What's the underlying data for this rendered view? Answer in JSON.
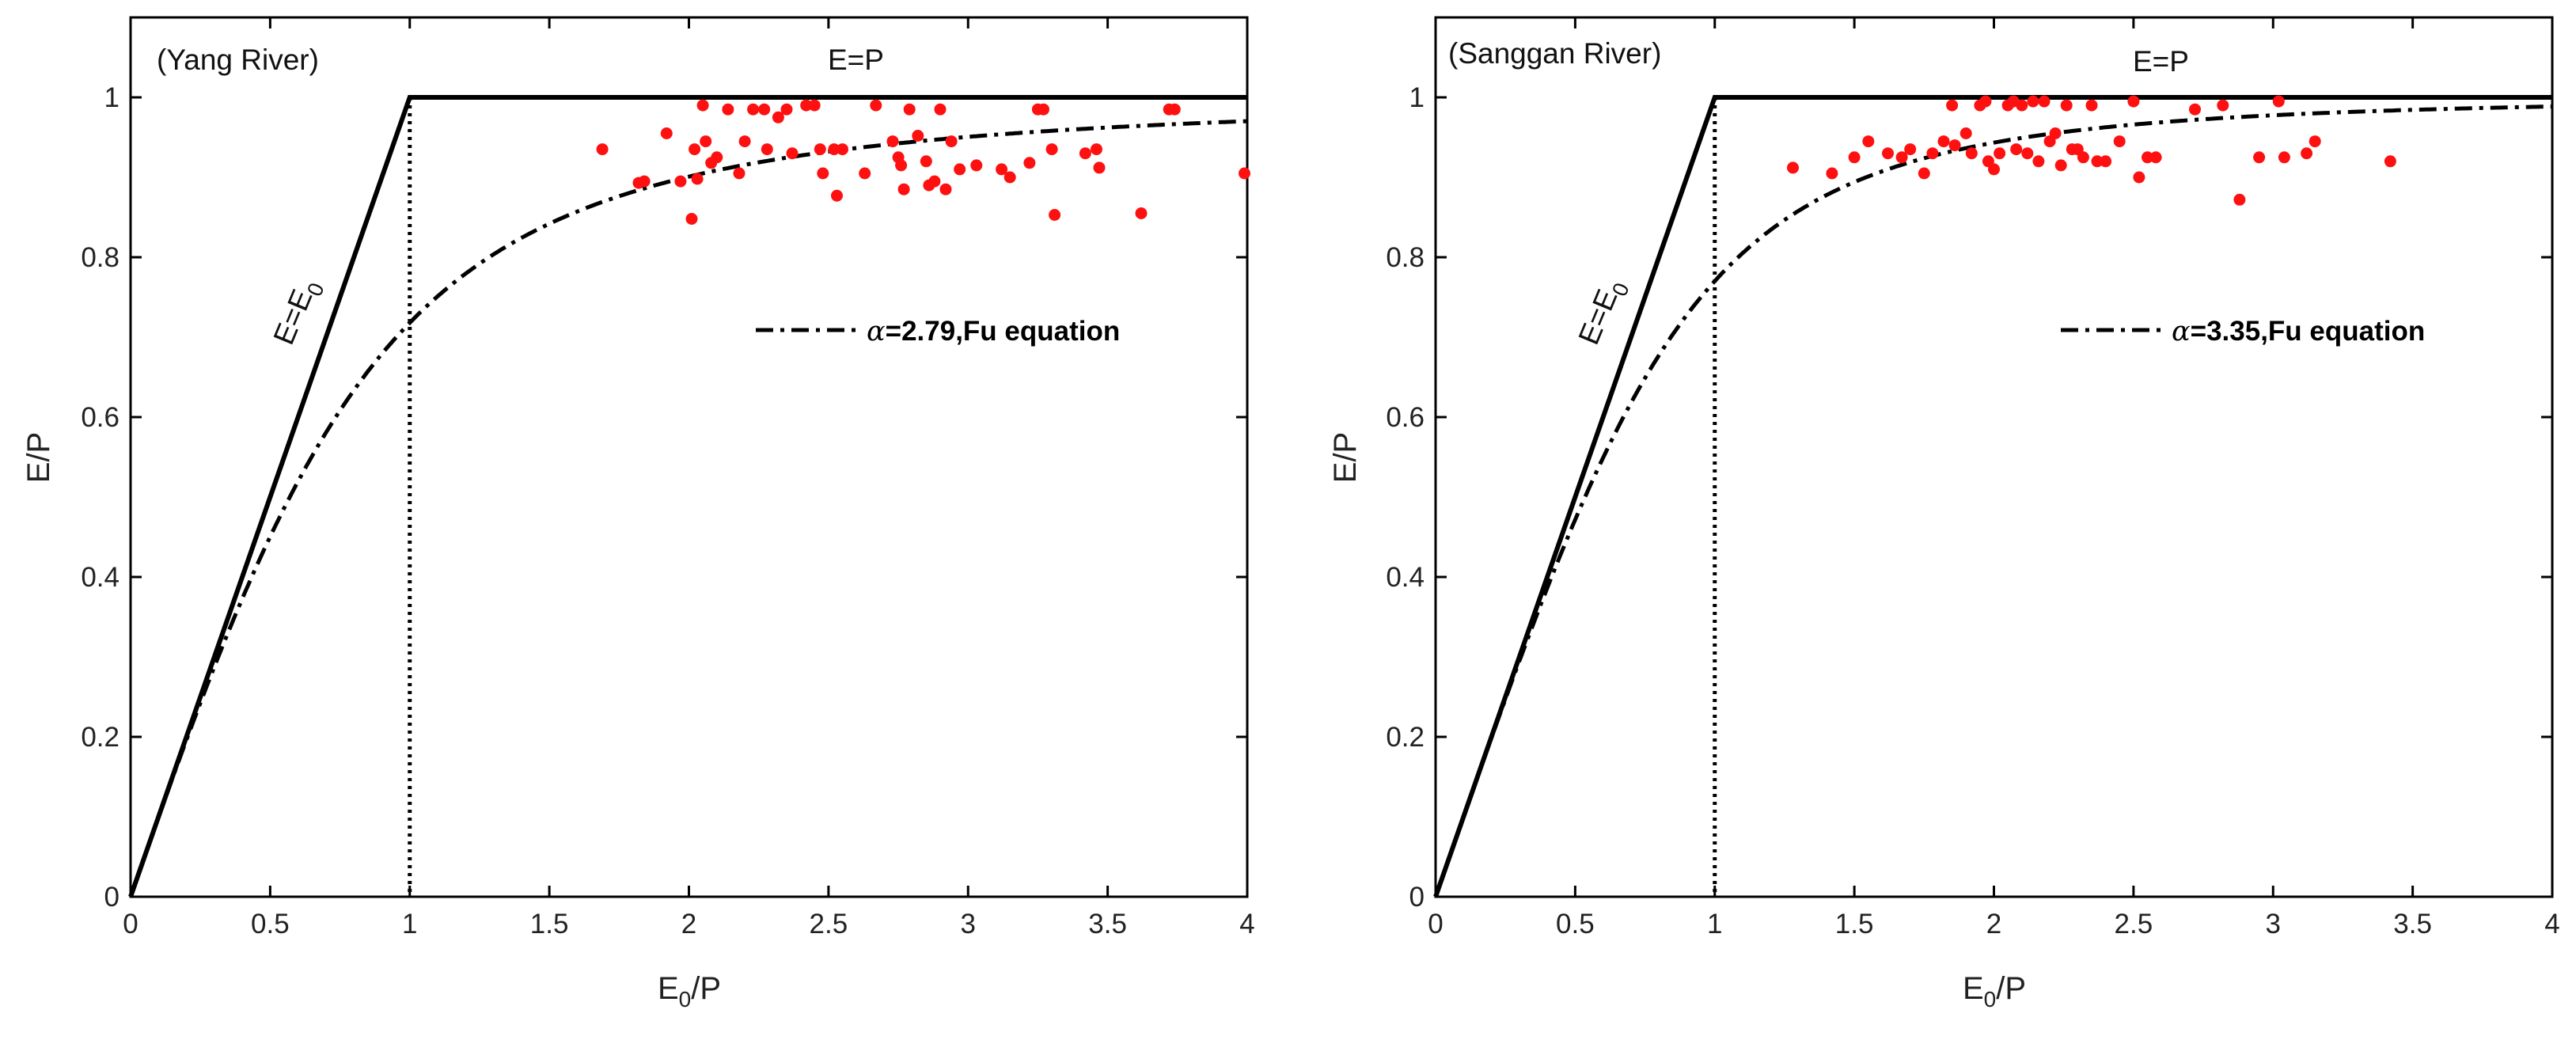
{
  "chart_data": [
    {
      "type": "scatter",
      "panel_label": "(Yang River)",
      "xlabel_main": "E",
      "xlabel_sub": "0",
      "xlabel_tail": "/P",
      "ylabel": "E/P",
      "xlim": [
        0,
        4
      ],
      "ylim": [
        0,
        1.1
      ],
      "xticks": [
        0,
        0.5,
        1,
        1.5,
        2,
        2.5,
        3,
        3.5,
        4
      ],
      "xtick_labels": [
        "0",
        "0.5",
        "1",
        "1.5",
        "2",
        "2.5",
        "3",
        "3.5",
        "4"
      ],
      "yticks": [
        0,
        0.2,
        0.4,
        0.6,
        0.8,
        1
      ],
      "ytick_labels": [
        "0",
        "0.2",
        "0.4",
        "0.6",
        "0.8",
        "1"
      ],
      "energy_limit_label_main": "E=E",
      "energy_limit_label_sub": "0",
      "water_limit_label": "E=P",
      "fu_alpha": 2.79,
      "legend_symbol": "α",
      "legend_text": "=2.79,Fu equation",
      "marker_color": "#ff1010",
      "points": [
        [
          1.69,
          0.935
        ],
        [
          1.82,
          0.893
        ],
        [
          1.84,
          0.895
        ],
        [
          1.92,
          0.955
        ],
        [
          1.97,
          0.895
        ],
        [
          2.01,
          0.848
        ],
        [
          2.02,
          0.935
        ],
        [
          2.03,
          0.898
        ],
        [
          2.05,
          0.99
        ],
        [
          2.06,
          0.945
        ],
        [
          2.08,
          0.918
        ],
        [
          2.1,
          0.925
        ],
        [
          2.14,
          0.985
        ],
        [
          2.18,
          0.905
        ],
        [
          2.2,
          0.945
        ],
        [
          2.23,
          0.985
        ],
        [
          2.27,
          0.985
        ],
        [
          2.28,
          0.935
        ],
        [
          2.32,
          0.975
        ],
        [
          2.35,
          0.985
        ],
        [
          2.37,
          0.93
        ],
        [
          2.42,
          0.99
        ],
        [
          2.45,
          0.99
        ],
        [
          2.47,
          0.935
        ],
        [
          2.48,
          0.905
        ],
        [
          2.52,
          0.935
        ],
        [
          2.55,
          0.935
        ],
        [
          2.53,
          0.877
        ],
        [
          2.63,
          0.905
        ],
        [
          2.67,
          0.99
        ],
        [
          2.73,
          0.945
        ],
        [
          2.75,
          0.925
        ],
        [
          2.76,
          0.915
        ],
        [
          2.77,
          0.885
        ],
        [
          2.79,
          0.985
        ],
        [
          2.82,
          0.952
        ],
        [
          2.85,
          0.92
        ],
        [
          2.86,
          0.89
        ],
        [
          2.88,
          0.895
        ],
        [
          2.9,
          0.985
        ],
        [
          2.92,
          0.885
        ],
        [
          2.94,
          0.945
        ],
        [
          2.97,
          0.91
        ],
        [
          3.03,
          0.915
        ],
        [
          3.12,
          0.91
        ],
        [
          3.15,
          0.9
        ],
        [
          3.22,
          0.918
        ],
        [
          3.25,
          0.985
        ],
        [
          3.27,
          0.985
        ],
        [
          3.3,
          0.935
        ],
        [
          3.31,
          0.853
        ],
        [
          3.42,
          0.93
        ],
        [
          3.46,
          0.935
        ],
        [
          3.47,
          0.912
        ],
        [
          3.62,
          0.855
        ],
        [
          3.72,
          0.985
        ],
        [
          3.74,
          0.985
        ],
        [
          3.99,
          0.905
        ]
      ]
    },
    {
      "type": "scatter",
      "panel_label": "(Sanggan River)",
      "xlabel_main": "E",
      "xlabel_sub": "0",
      "xlabel_tail": "/P",
      "ylabel": "E/P",
      "xlim": [
        0,
        4
      ],
      "ylim": [
        0,
        1.1
      ],
      "xticks": [
        0,
        0.5,
        1,
        1.5,
        2,
        2.5,
        3,
        3.5,
        4
      ],
      "xtick_labels": [
        "0",
        "0.5",
        "1",
        "1.5",
        "2",
        "2.5",
        "3",
        "3.5",
        "4"
      ],
      "yticks": [
        0,
        0.2,
        0.4,
        0.6,
        0.8,
        1
      ],
      "ytick_labels": [
        "0",
        "0.2",
        "0.4",
        "0.6",
        "0.8",
        "1"
      ],
      "energy_limit_label_main": "E=E",
      "energy_limit_label_sub": "0",
      "water_limit_label": "E=P",
      "fu_alpha": 3.35,
      "legend_symbol": "α",
      "legend_text": "=3.35,Fu equation",
      "marker_color": "#ff1010",
      "points": [
        [
          1.28,
          0.912
        ],
        [
          1.42,
          0.905
        ],
        [
          1.5,
          0.925
        ],
        [
          1.55,
          0.945
        ],
        [
          1.62,
          0.93
        ],
        [
          1.67,
          0.925
        ],
        [
          1.7,
          0.935
        ],
        [
          1.75,
          0.905
        ],
        [
          1.78,
          0.93
        ],
        [
          1.82,
          0.945
        ],
        [
          1.85,
          0.99
        ],
        [
          1.86,
          0.94
        ],
        [
          1.9,
          0.955
        ],
        [
          1.92,
          0.93
        ],
        [
          1.95,
          0.99
        ],
        [
          1.97,
          0.995
        ],
        [
          1.98,
          0.92
        ],
        [
          2.0,
          0.91
        ],
        [
          2.02,
          0.93
        ],
        [
          2.05,
          0.99
        ],
        [
          2.07,
          0.995
        ],
        [
          2.08,
          0.935
        ],
        [
          2.1,
          0.99
        ],
        [
          2.12,
          0.93
        ],
        [
          2.14,
          0.995
        ],
        [
          2.16,
          0.92
        ],
        [
          2.18,
          0.995
        ],
        [
          2.2,
          0.945
        ],
        [
          2.22,
          0.955
        ],
        [
          2.24,
          0.915
        ],
        [
          2.26,
          0.99
        ],
        [
          2.28,
          0.935
        ],
        [
          2.3,
          0.935
        ],
        [
          2.32,
          0.925
        ],
        [
          2.35,
          0.99
        ],
        [
          2.37,
          0.92
        ],
        [
          2.4,
          0.92
        ],
        [
          2.45,
          0.945
        ],
        [
          2.5,
          0.995
        ],
        [
          2.52,
          0.9
        ],
        [
          2.55,
          0.925
        ],
        [
          2.58,
          0.925
        ],
        [
          2.72,
          0.985
        ],
        [
          2.82,
          0.99
        ],
        [
          2.88,
          0.872
        ],
        [
          2.95,
          0.925
        ],
        [
          3.02,
          0.995
        ],
        [
          3.04,
          0.925
        ],
        [
          3.12,
          0.93
        ],
        [
          3.15,
          0.945
        ],
        [
          3.42,
          0.92
        ]
      ]
    }
  ]
}
